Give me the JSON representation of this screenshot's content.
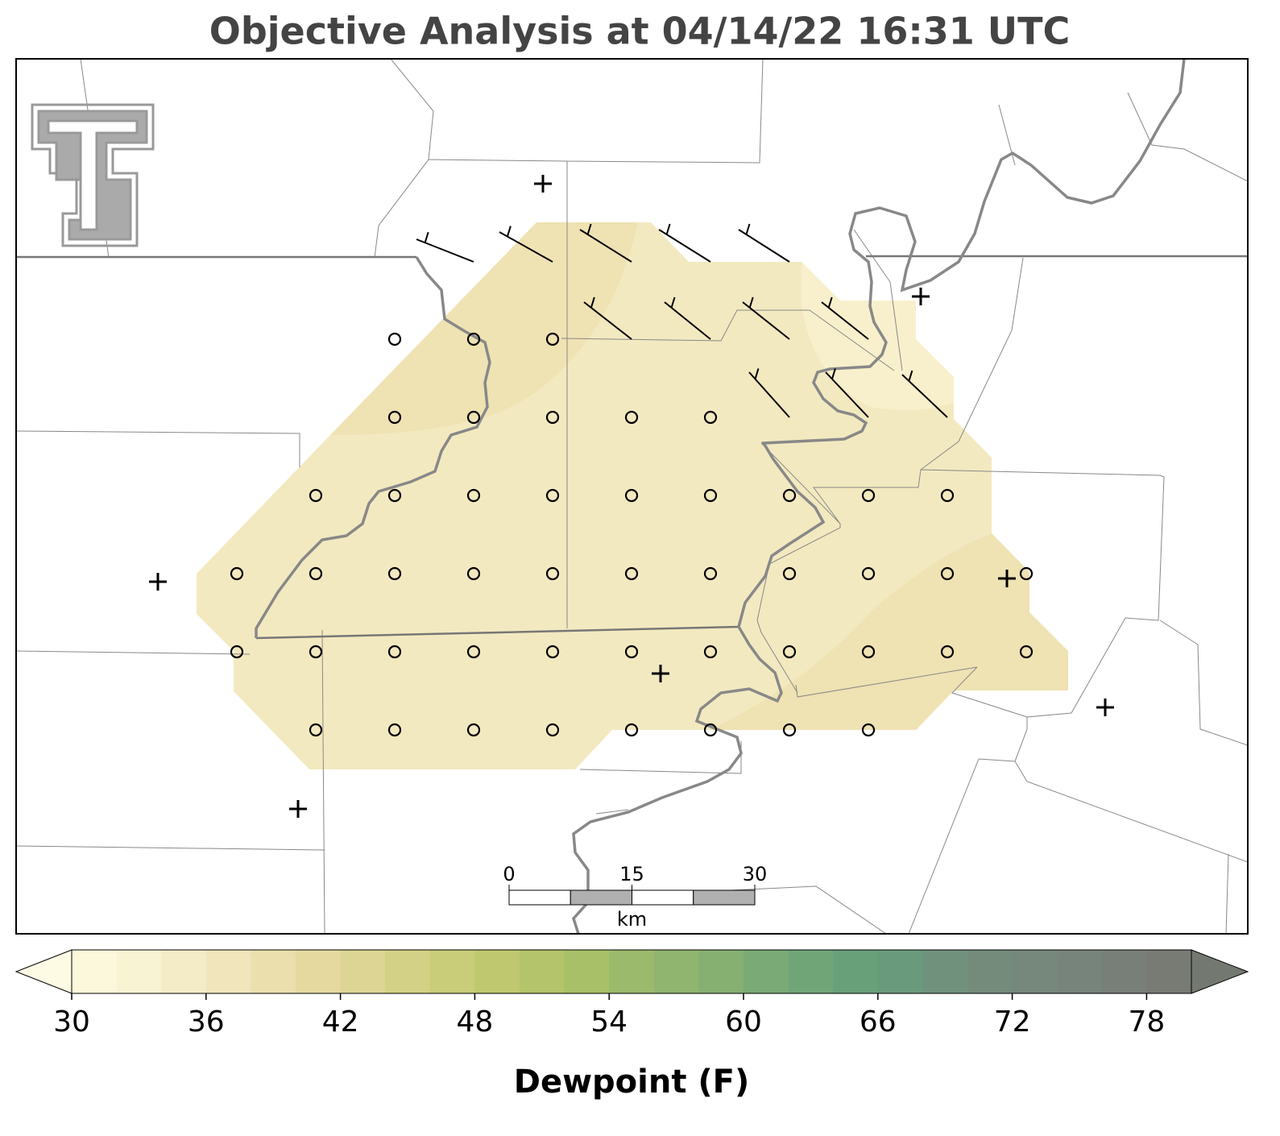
{
  "title": "Objective Analysis at 04/14/22 16:31 UTC",
  "colorbar": {
    "label": "Dewpoint (F)",
    "clim": [
      30,
      80
    ],
    "ticks": [
      30,
      36,
      42,
      48,
      54,
      60,
      66,
      72,
      78
    ],
    "colors": [
      "#fbf8dc",
      "#f8f3d3",
      "#f4ecc7",
      "#f0e5bb",
      "#ebdfae",
      "#e5d9a0",
      "#ddd593",
      "#d3d185",
      "#c9cc79",
      "#bfc86f",
      "#b3c46a",
      "#a8c068",
      "#9cba6c",
      "#90b56f",
      "#85b072",
      "#7aaa75",
      "#70a677",
      "#68a07a",
      "#6a9a7c",
      "#70927c",
      "#748b7c",
      "#76877c",
      "#77847b",
      "#787f78",
      "#777b74"
    ],
    "under_color": "#fdfbe4",
    "over_color": "#737870"
  },
  "scale_bar": {
    "ticks": [
      0,
      15,
      30
    ],
    "unit": "km"
  }
}
